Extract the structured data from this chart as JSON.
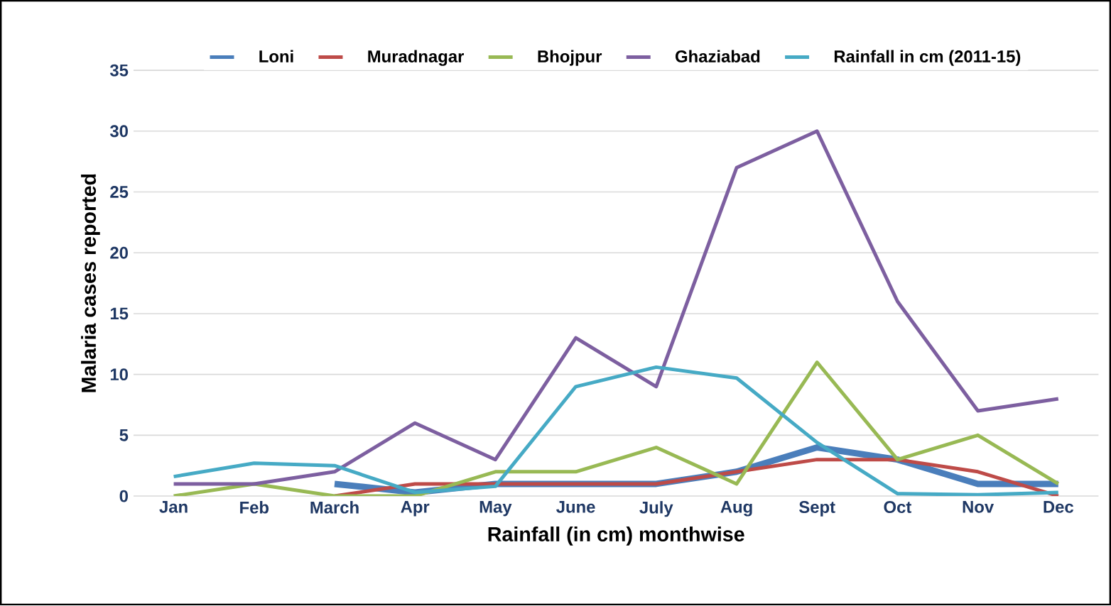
{
  "chart_data": {
    "type": "line",
    "xlabel": "Rainfall  (in cm) monthwise",
    "ylabel": "Malaria  cases reported",
    "categories": [
      "Jan",
      "Feb",
      "March",
      "Apr",
      "May",
      "June",
      "July",
      "Aug",
      "Sept",
      "Oct",
      "Nov",
      "Dec"
    ],
    "series": [
      {
        "name": "Loni",
        "color": "#4a7ebb",
        "values": [
          null,
          null,
          1,
          0.3,
          1,
          1,
          1,
          2,
          4,
          3,
          1,
          1
        ]
      },
      {
        "name": "Muradnagar",
        "color": "#be4b48",
        "values": [
          null,
          null,
          0,
          1,
          1,
          1,
          1,
          2,
          3,
          3,
          2,
          0
        ]
      },
      {
        "name": "Bhojpur",
        "color": "#98b954",
        "values": [
          0,
          1,
          0,
          0,
          2,
          2,
          4,
          1,
          11,
          3,
          5,
          1
        ]
      },
      {
        "name": "Ghaziabad",
        "color": "#7d5fa0",
        "values": [
          1,
          1,
          2,
          6,
          3,
          13,
          9,
          27,
          30,
          16,
          7,
          8
        ]
      },
      {
        "name": "Rainfall in cm (2011-15)",
        "color": "#46aac5",
        "values": [
          1.6,
          2.7,
          2.5,
          0.3,
          0.8,
          9,
          10.6,
          9.7,
          4.4,
          0.2,
          0.1,
          0.3
        ]
      }
    ],
    "ylim": [
      0,
      35
    ],
    "yticks": [
      0,
      5,
      10,
      15,
      20,
      25,
      30,
      35
    ],
    "grid": "y",
    "legend": "top",
    "marker": "none",
    "line_style": "solid"
  }
}
